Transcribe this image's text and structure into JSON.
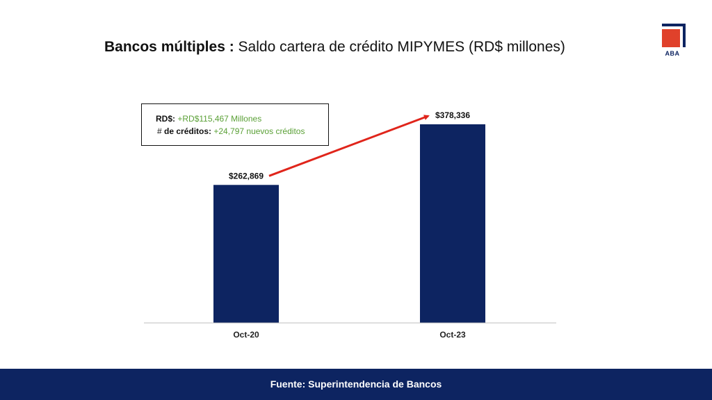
{
  "header": {
    "title_bold": "Bancos múltiples :",
    "title_rest": " Saldo cartera de crédito MIPYMES (RD$ millones)"
  },
  "logo": {
    "text": "ABA",
    "colors": {
      "square": "#e0412b",
      "frame": "#0d2461"
    }
  },
  "callout": {
    "rd_label": "RD$:",
    "rd_value": " +RD$115,467 Millones",
    "cred_prefix": "# ",
    "cred_label": "de créditos:",
    "cred_value": " +24,797 nuevos créditos"
  },
  "chart_data": {
    "type": "bar",
    "categories": [
      "Oct-20",
      "Oct-23"
    ],
    "values": [
      262869,
      378336
    ],
    "data_labels": [
      "$262,869",
      "$378,336"
    ],
    "ylim": [
      0,
      400000
    ],
    "grid": false,
    "bar_color": "#0d2461",
    "arrow_color": "#e0251b",
    "annotation": "arrow from Oct-20 bar to Oct-23 bar"
  },
  "footer": {
    "source": "Fuente: Superintendencia de Bancos"
  }
}
